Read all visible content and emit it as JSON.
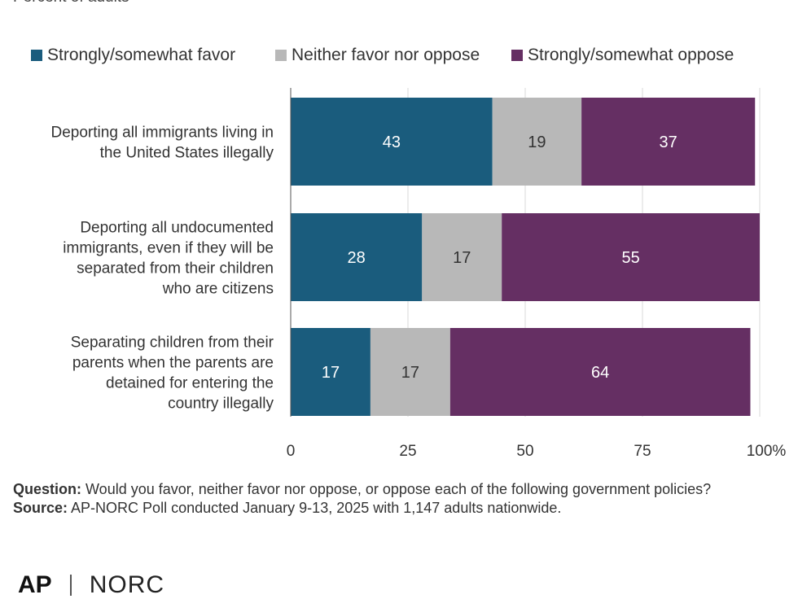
{
  "subtitle": "Percent of adults",
  "colors": {
    "favor": "#1a5c7d",
    "neither": "#b8b8b8",
    "oppose": "#652f63",
    "grid": "#d9d9d9",
    "axis": "#555555",
    "text": "#333333"
  },
  "chart_data": {
    "type": "bar",
    "orientation": "horizontal",
    "stacked": true,
    "categories": [
      [
        "Deporting all immigrants living in",
        "the United States illegally"
      ],
      [
        "Deporting all undocumented",
        "immigrants, even if they will be",
        "separated from their children",
        "who are citizens"
      ],
      [
        "Separating children from their",
        "parents when the parents are",
        "detained for entering the",
        "country illegally"
      ]
    ],
    "series": [
      {
        "name": "Strongly/somewhat favor",
        "values": [
          43,
          28,
          17
        ],
        "color": "#1a5c7d"
      },
      {
        "name": "Neither favor nor oppose",
        "values": [
          19,
          17,
          17
        ],
        "color": "#b8b8b8"
      },
      {
        "name": "Strongly/somewhat oppose",
        "values": [
          37,
          55,
          64
        ],
        "color": "#652f63"
      }
    ],
    "xlim": [
      0,
      100
    ],
    "xticks": [
      0,
      25,
      50,
      75,
      100
    ],
    "xtick_labels": [
      "0",
      "25",
      "50",
      "75",
      "100%"
    ],
    "legend_position": "top",
    "grid": true
  },
  "notes": {
    "question_label": "Question:",
    "question_text": "Would you favor, neither favor nor oppose, or oppose each of the following government policies?",
    "source_label": "Source:",
    "source_text": "AP-NORC Poll conducted January 9-13, 2025 with 1,147 adults nationwide."
  },
  "logo": {
    "ap": "AP",
    "norc": "NORC"
  }
}
